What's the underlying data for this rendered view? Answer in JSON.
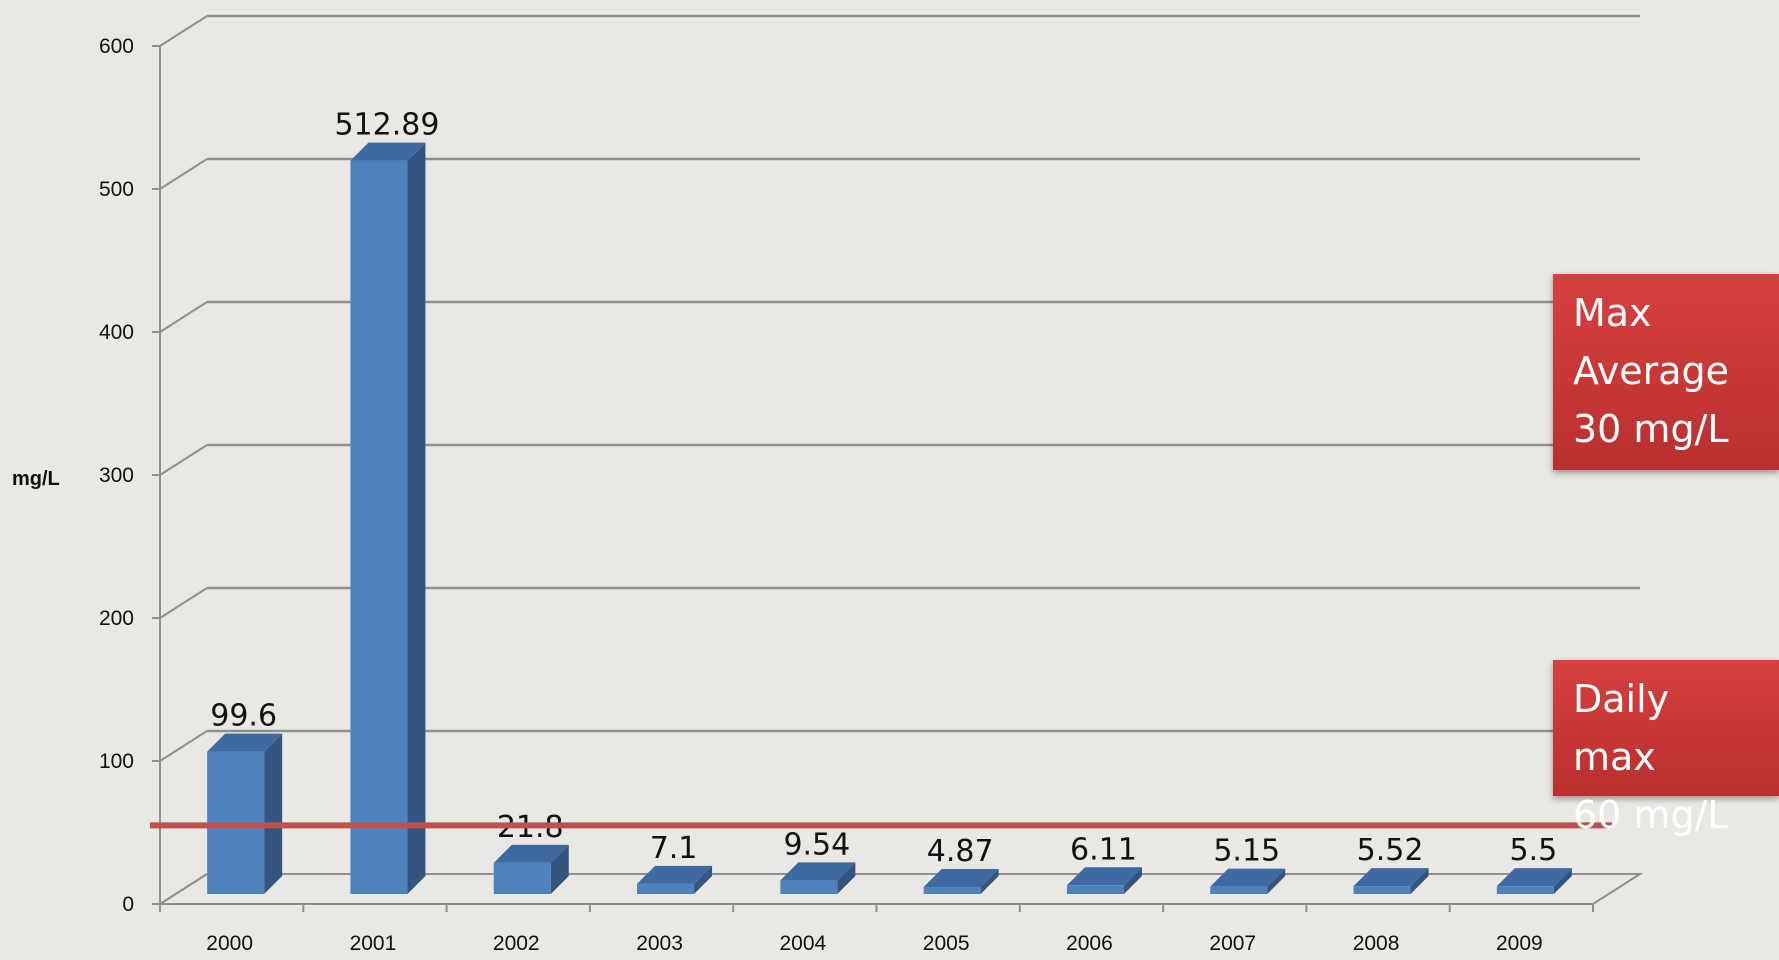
{
  "chart_data": {
    "type": "bar",
    "categories": [
      "2000",
      "2001",
      "2002",
      "2003",
      "2004",
      "2005",
      "2006",
      "2007",
      "2008",
      "2009"
    ],
    "values": [
      99.6,
      512.89,
      21.8,
      7.1,
      9.54,
      4.87,
      6.11,
      5.15,
      5.52,
      5.5
    ],
    "value_labels": [
      "99.6",
      "512.89",
      "21.8",
      "7.1",
      "9.54",
      "4.87",
      "6.11",
      "5.15",
      "5.52",
      "5.5"
    ],
    "ylabel": "mg/L",
    "ylim": [
      0,
      600
    ],
    "yticks": [
      "0",
      "100",
      "200",
      "300",
      "400",
      "500",
      "600"
    ],
    "grid": true,
    "bar_color": "#4f81bd",
    "reference_line": {
      "value": 55,
      "color": "#c0504d"
    }
  },
  "callouts": {
    "max_average": {
      "lines": [
        "Max",
        "Average",
        "30 mg/L"
      ]
    },
    "daily_max": {
      "lines": [
        "Daily max",
        "60 mg/L"
      ]
    }
  }
}
